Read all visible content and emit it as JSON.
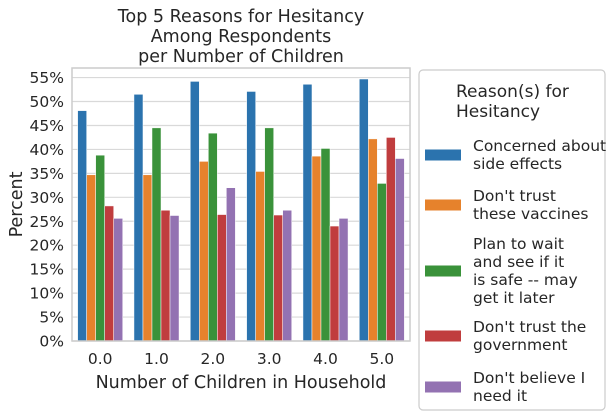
{
  "chart_data": {
    "type": "bar",
    "title": [
      "Top 5 Reasons for Hesitancy",
      "Among Respondents",
      "per Number of Children"
    ],
    "xlabel": "Number of Children in Household",
    "ylabel": "Percent",
    "categories": [
      "0.0",
      "1.0",
      "2.0",
      "3.0",
      "4.0",
      "5.0"
    ],
    "ylim": [
      0,
      57
    ],
    "yticks": [
      0,
      5,
      10,
      15,
      20,
      25,
      30,
      35,
      40,
      45,
      50,
      55
    ],
    "ytick_labels": [
      "0%",
      "5%",
      "10%",
      "15%",
      "20%",
      "25%",
      "30%",
      "35%",
      "40%",
      "45%",
      "50%",
      "55%"
    ],
    "grid": "horizontal",
    "legend": {
      "title": [
        "Reason(s) for",
        "Hesitancy"
      ],
      "placement": "outside-right"
    },
    "series": [
      {
        "name": "Concerned about side effects",
        "legend_lines": [
          "Concerned about",
          "side effects"
        ],
        "color": "#2b73ae",
        "values": [
          48.1,
          51.5,
          54.2,
          52.1,
          53.6,
          54.7
        ]
      },
      {
        "name": "Don't trust these vaccines",
        "legend_lines": [
          "Don't trust",
          "these vaccines"
        ],
        "color": "#e6822c",
        "values": [
          34.7,
          34.7,
          37.5,
          35.4,
          38.6,
          42.2
        ]
      },
      {
        "name": "Plan to wait and see if it is safe -- may get it later",
        "legend_lines": [
          "Plan to wait",
          "and see if it",
          "is safe -- may",
          "get it later"
        ],
        "color": "#3a923a",
        "values": [
          38.8,
          44.5,
          43.4,
          44.5,
          40.2,
          32.9
        ]
      },
      {
        "name": "Don't trust the government",
        "legend_lines": [
          "Don't trust the",
          "government"
        ],
        "color": "#c03d3e",
        "values": [
          28.2,
          27.3,
          26.4,
          26.3,
          24.0,
          42.5
        ]
      },
      {
        "name": "Don't believe I need it",
        "legend_lines": [
          "Don't believe I",
          "need it"
        ],
        "color": "#9372b2",
        "values": [
          25.6,
          26.2,
          32.0,
          27.3,
          25.6,
          38.1
        ]
      }
    ]
  }
}
